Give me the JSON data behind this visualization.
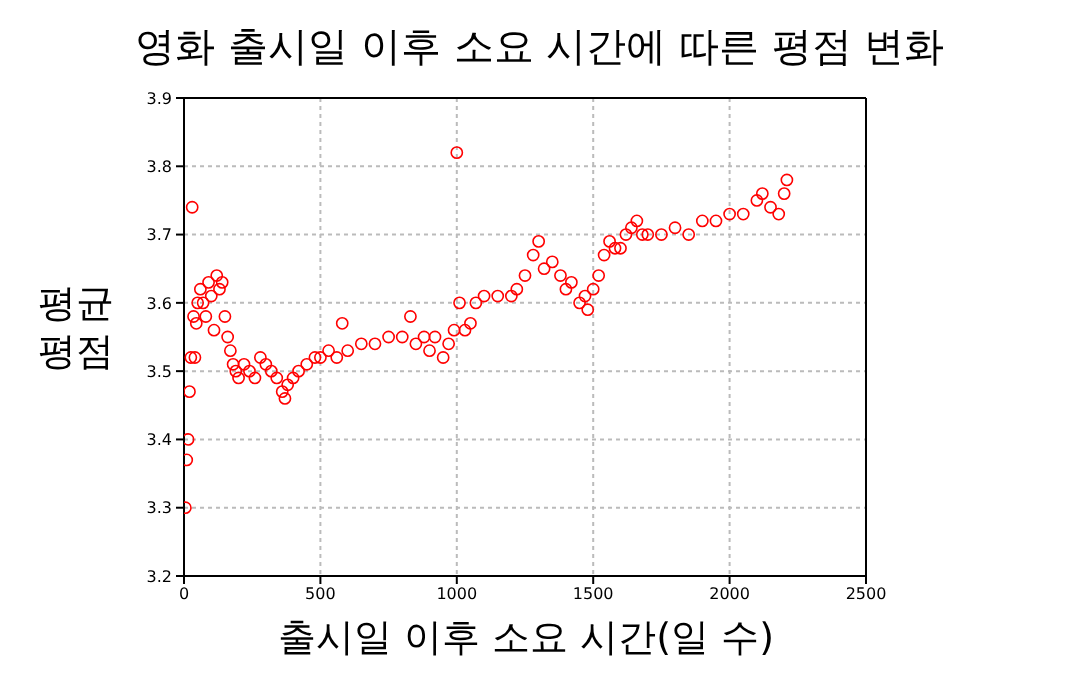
{
  "chart_data": {
    "type": "scatter",
    "title": "영화 출시일 이후 소요 시간에 따른 평점 변화",
    "xlabel": "출시일 이후 소요 시간(일 수)",
    "ylabel": "평균 평점",
    "x": [
      5,
      10,
      15,
      20,
      25,
      30,
      35,
      40,
      45,
      50,
      60,
      70,
      80,
      90,
      100,
      110,
      120,
      130,
      140,
      150,
      160,
      170,
      180,
      190,
      200,
      220,
      240,
      260,
      280,
      300,
      320,
      340,
      360,
      370,
      380,
      400,
      420,
      450,
      480,
      500,
      530,
      560,
      580,
      600,
      650,
      700,
      750,
      800,
      830,
      850,
      880,
      900,
      920,
      950,
      970,
      990,
      1000,
      1010,
      1030,
      1050,
      1070,
      1100,
      1150,
      1200,
      1220,
      1250,
      1280,
      1300,
      1320,
      1350,
      1380,
      1400,
      1420,
      1450,
      1470,
      1480,
      1500,
      1520,
      1540,
      1560,
      1580,
      1600,
      1620,
      1640,
      1660,
      1680,
      1700,
      1750,
      1800,
      1850,
      1900,
      1950,
      2000,
      2050,
      2100,
      2120,
      2150,
      2180,
      2200,
      2210
    ],
    "values": [
      3.3,
      3.37,
      3.4,
      3.47,
      3.52,
      3.74,
      3.58,
      3.52,
      3.57,
      3.6,
      3.62,
      3.6,
      3.58,
      3.63,
      3.61,
      3.56,
      3.64,
      3.62,
      3.63,
      3.58,
      3.55,
      3.53,
      3.51,
      3.5,
      3.49,
      3.51,
      3.5,
      3.49,
      3.52,
      3.51,
      3.5,
      3.49,
      3.47,
      3.46,
      3.48,
      3.49,
      3.5,
      3.51,
      3.52,
      3.52,
      3.53,
      3.52,
      3.57,
      3.53,
      3.54,
      3.54,
      3.55,
      3.55,
      3.58,
      3.54,
      3.55,
      3.53,
      3.55,
      3.52,
      3.54,
      3.56,
      3.82,
      3.6,
      3.56,
      3.57,
      3.6,
      3.61,
      3.61,
      3.61,
      3.62,
      3.64,
      3.67,
      3.69,
      3.65,
      3.66,
      3.64,
      3.62,
      3.63,
      3.6,
      3.61,
      3.59,
      3.62,
      3.64,
      3.67,
      3.69,
      3.68,
      3.68,
      3.7,
      3.71,
      3.72,
      3.7,
      3.7,
      3.7,
      3.71,
      3.7,
      3.72,
      3.72,
      3.73,
      3.73,
      3.75,
      3.76,
      3.74,
      3.73,
      3.76,
      3.78
    ],
    "color": "#ff0000",
    "marker": "circle",
    "grid": true,
    "xlim": [
      0,
      2500
    ],
    "xticks": [
      0,
      500,
      1000,
      1500,
      2000,
      2500
    ],
    "ylim": [
      3.2,
      3.9
    ],
    "yticks": [
      3.2,
      3.3,
      3.4,
      3.5,
      3.6,
      3.7,
      3.8,
      3.9
    ]
  }
}
